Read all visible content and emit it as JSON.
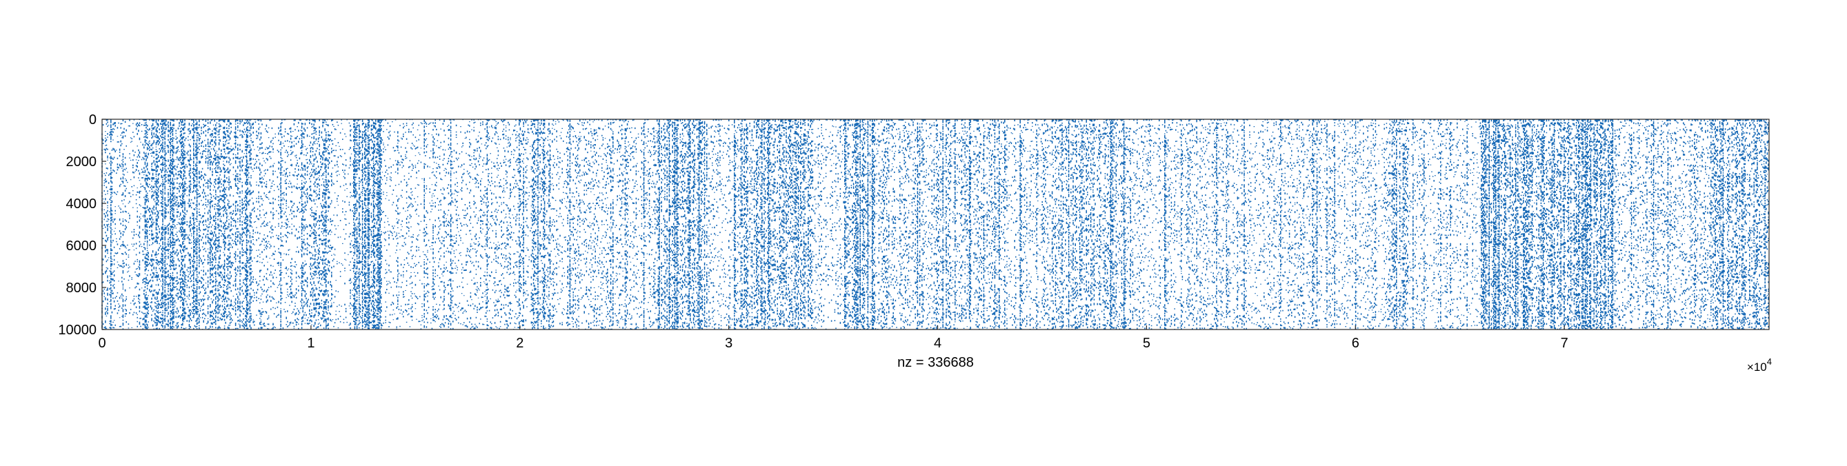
{
  "chart_data": {
    "type": "scatter",
    "plot_kind": "sparsity-pattern",
    "xlabel": "nz = 336688",
    "nz": 336688,
    "x_exponent_label": {
      "base": "×10",
      "exponent": "4"
    },
    "xlim": [
      0,
      79800
    ],
    "ylim": [
      0,
      10000
    ],
    "y_reversed": true,
    "x_ticks": [
      0,
      10000,
      20000,
      30000,
      40000,
      50000,
      60000,
      70000
    ],
    "x_tick_labels": [
      "0",
      "1",
      "2",
      "3",
      "4",
      "5",
      "6",
      "7"
    ],
    "y_ticks": [
      0,
      2000,
      4000,
      6000,
      8000,
      10000
    ],
    "y_tick_labels": [
      "0",
      "2000",
      "4000",
      "6000",
      "8000",
      "10000"
    ],
    "marker_color": "#0f64b4",
    "grid": false,
    "legend": "none",
    "column_density_bands": [
      {
        "x": [
          0,
          600
        ],
        "density": 0.55
      },
      {
        "x": [
          600,
          2000
        ],
        "density": 0.3
      },
      {
        "x": [
          2000,
          7000
        ],
        "density": 0.6
      },
      {
        "x": [
          7000,
          9500
        ],
        "density": 0.35
      },
      {
        "x": [
          9500,
          11000
        ],
        "density": 0.5
      },
      {
        "x": [
          11000,
          12000
        ],
        "density": 0.2
      },
      {
        "x": [
          12000,
          13400
        ],
        "density": 0.7
      },
      {
        "x": [
          13400,
          15500
        ],
        "density": 0.25
      },
      {
        "x": [
          15500,
          20500
        ],
        "density": 0.3
      },
      {
        "x": [
          20500,
          21500
        ],
        "density": 0.6
      },
      {
        "x": [
          21500,
          26500
        ],
        "density": 0.35
      },
      {
        "x": [
          26500,
          29000
        ],
        "density": 0.55
      },
      {
        "x": [
          29000,
          30500
        ],
        "density": 0.35
      },
      {
        "x": [
          30500,
          34000
        ],
        "density": 0.55
      },
      {
        "x": [
          34000,
          35500
        ],
        "density": 0.3
      },
      {
        "x": [
          35500,
          37000
        ],
        "density": 0.6
      },
      {
        "x": [
          37000,
          42000
        ],
        "density": 0.4
      },
      {
        "x": [
          42000,
          45500
        ],
        "density": 0.35
      },
      {
        "x": [
          45500,
          49000
        ],
        "density": 0.5
      },
      {
        "x": [
          49000,
          54000
        ],
        "density": 0.35
      },
      {
        "x": [
          54000,
          61500
        ],
        "density": 0.3
      },
      {
        "x": [
          61500,
          62500
        ],
        "density": 0.5
      },
      {
        "x": [
          62500,
          66000
        ],
        "density": 0.3
      },
      {
        "x": [
          66000,
          72500
        ],
        "density": 0.65
      },
      {
        "x": [
          72500,
          77000
        ],
        "density": 0.35
      },
      {
        "x": [
          77000,
          79800
        ],
        "density": 0.55
      }
    ]
  }
}
